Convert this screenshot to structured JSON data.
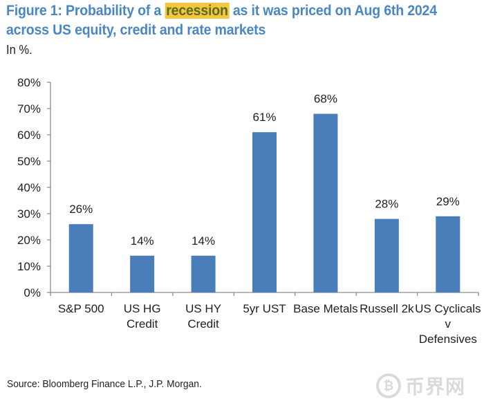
{
  "header": {
    "title_prefix": "Figure 1: Probability of a ",
    "title_highlight": "recession",
    "title_suffix": " as it was priced on Aug 6th 2024",
    "title_line2": "across US equity, credit and rate markets",
    "unit_note": "In %."
  },
  "footer": {
    "source": "Source: Bloomberg Finance L.P., J.P. Morgan.",
    "watermark_icon": "bitcoin-coin-icon",
    "watermark_text": "币界网"
  },
  "colors": {
    "title": "#4A86C4",
    "highlight": "#F4C53F",
    "bar": "#4A7EBB",
    "axis": "#8c8c8c"
  },
  "chart_data": {
    "type": "bar",
    "title": "Probability of a recession as it was priced on Aug 6th 2024 across US equity, credit and rate markets",
    "xlabel": "",
    "ylabel": "In %.",
    "ylim": [
      0,
      80
    ],
    "yticks": [
      0,
      10,
      20,
      30,
      40,
      50,
      60,
      70,
      80
    ],
    "ytick_labels": [
      "0%",
      "10%",
      "20%",
      "30%",
      "40%",
      "50%",
      "60%",
      "70%",
      "80%"
    ],
    "grid": false,
    "legend": "none",
    "categories": [
      [
        "S&P 500"
      ],
      [
        "US HG",
        "Credit"
      ],
      [
        "US HY",
        "Credit"
      ],
      [
        "5yr UST"
      ],
      [
        "Base Metals"
      ],
      [
        "Russell 2k"
      ],
      [
        "US Cyclicals",
        "v",
        "Defensives"
      ]
    ],
    "values": [
      26,
      14,
      14,
      61,
      68,
      28,
      29
    ],
    "data_labels": [
      "26%",
      "14%",
      "14%",
      "61%",
      "68%",
      "28%",
      "29%"
    ]
  }
}
